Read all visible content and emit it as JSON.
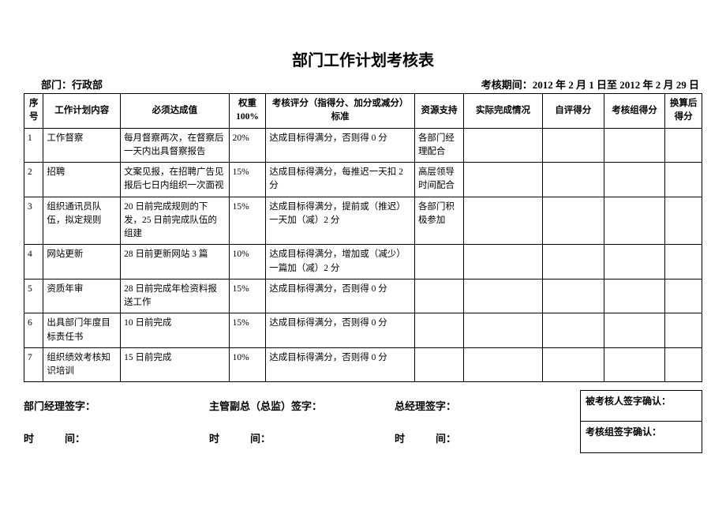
{
  "title": "部门工作计划考核表",
  "header": {
    "dept_label": "部门：行政部",
    "period_label": "考核期间：2012 年 2 月 1 日至 2012 年 2 月 29 日"
  },
  "columns": {
    "seq": "序号",
    "content": "工作计划内容",
    "target": "必须达成值",
    "weight": "权重100%",
    "criteria": "考核评分（指得分、加分或减分）标准",
    "resource": "资源支持",
    "actual": "实际完成情况",
    "self": "自评得分",
    "group": "考核组得分",
    "final": "换算后得分"
  },
  "rows": [
    {
      "seq": "1",
      "content": "工作督察",
      "target": "每月督察两次，在督察后一天内出具督察报告",
      "weight": "20%",
      "criteria": "达成目标得满分，否则得 0 分",
      "resource": "各部门经理配合",
      "actual": "",
      "self": "",
      "group": "",
      "final": ""
    },
    {
      "seq": "2",
      "content": "招聘",
      "target": "文案见报，在招聘广告见报后七日内组织一次面视",
      "weight": "15%",
      "criteria": "达成目标得满分，每推迟一天扣 2 分",
      "resource": "高层领导时间配合",
      "actual": "",
      "self": "",
      "group": "",
      "final": ""
    },
    {
      "seq": "3",
      "content": "组织通讯员队伍，拟定规则",
      "target": "20 日前完成规则的下发，25 日前完成队伍的组建",
      "weight": "15%",
      "criteria": "达成目标得满分，提前或（推迟）一天加（减）2 分",
      "resource": "各部门积极参加",
      "actual": "",
      "self": "",
      "group": "",
      "final": ""
    },
    {
      "seq": "4",
      "content": "网站更新",
      "target": "28 日前更新网站 3 篇",
      "weight": "10%",
      "criteria": "达成目标得满分，增加或（减少）一篇加（减）2 分",
      "resource": "",
      "actual": "",
      "self": "",
      "group": "",
      "final": ""
    },
    {
      "seq": "5",
      "content": "资质年审",
      "target": "28 日前完成年检资料报送工作",
      "weight": "15%",
      "criteria": "达成目标得满分，否则得 0 分",
      "resource": "",
      "actual": "",
      "self": "",
      "group": "",
      "final": ""
    },
    {
      "seq": "6",
      "content": "出具部门年度目标责任书",
      "target": "10 日前完成",
      "weight": "15%",
      "criteria": "达成目标得满分，否则得 0 分",
      "resource": "",
      "actual": "",
      "self": "",
      "group": "",
      "final": ""
    },
    {
      "seq": "7",
      "content": "组织绩效考核知识培训",
      "target": "15 日前完成",
      "weight": "10%",
      "criteria": "达成目标得满分，否则得 0 分",
      "resource": "",
      "actual": "",
      "self": "",
      "group": "",
      "final": ""
    }
  ],
  "signatures": {
    "dept_mgr": "部门经理签字：",
    "vp": "主管副总（总监）签字：",
    "gm": "总经理签字：",
    "time": "时　　　间：",
    "time2": "时　　　间：",
    "time3": "时　　　间：",
    "assessee": "被考核人签字确认：",
    "group": "考核组签字确认："
  }
}
